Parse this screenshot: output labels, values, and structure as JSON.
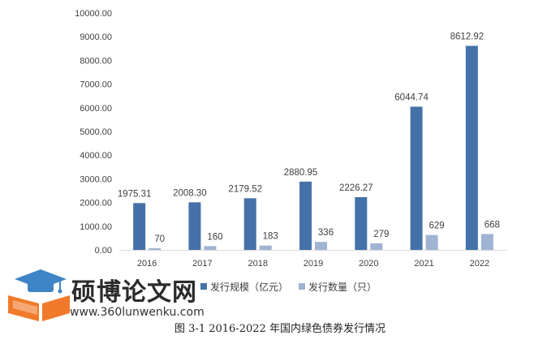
{
  "chart_data": {
    "type": "bar",
    "categories": [
      "2016",
      "2017",
      "2018",
      "2019",
      "2020",
      "2021",
      "2022"
    ],
    "series": [
      {
        "name": "发行规模（亿元）",
        "color": "#4472a8",
        "values": [
          1975.31,
          2008.3,
          2179.52,
          2880.95,
          2226.27,
          6044.74,
          8612.92
        ],
        "labels": [
          "1975.31",
          "2008.30",
          "2179.52",
          "2880.95",
          "2226.27",
          "6044.74",
          "8612.92"
        ]
      },
      {
        "name": "发行数量（只）",
        "color": "#9fb3d3",
        "values": [
          70,
          160,
          183,
          336,
          279,
          629,
          668
        ],
        "labels": [
          "70",
          "160",
          "183",
          "336",
          "279",
          "629",
          "668"
        ]
      }
    ],
    "ylim": [
      0,
      10000
    ],
    "yticks": [
      "0.00",
      "1000.00",
      "2000.00",
      "3000.00",
      "4000.00",
      "5000.00",
      "6000.00",
      "7000.00",
      "8000.00",
      "9000.00",
      "10000.00"
    ],
    "grid": false,
    "legend": "bottom"
  },
  "caption": "图 3-1 2016-2022 年国内绿色债券发行情况",
  "watermark": {
    "title": "硕博论文网",
    "url": "www.360lunwenku.com",
    "icon": "graduation-book-icon"
  }
}
